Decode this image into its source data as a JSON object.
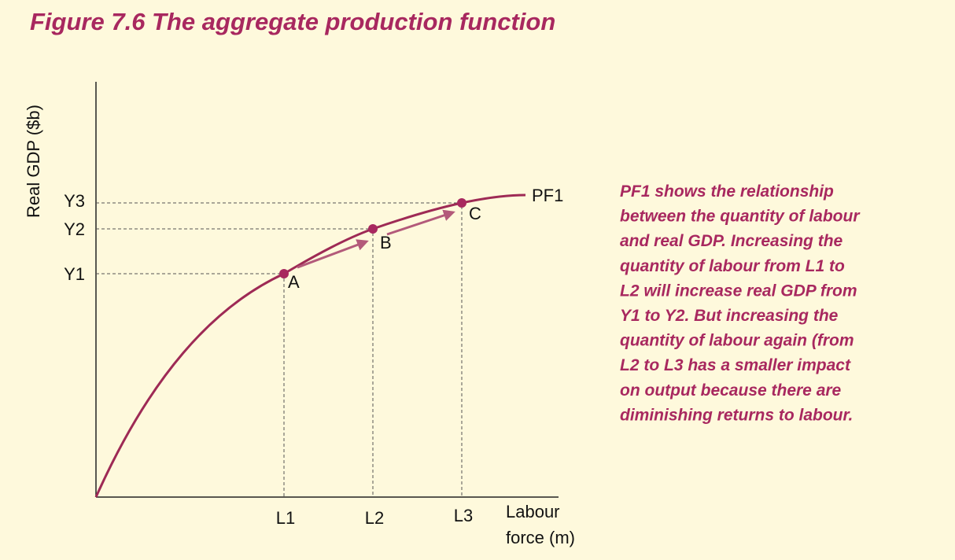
{
  "title": "Figure 7.6  The aggregate production function",
  "y_axis_label": "Real GDP ($b)",
  "x_axis_label": [
    "Labour",
    "force (m)"
  ],
  "y_ticks": [
    "Y1",
    "Y2",
    "Y3"
  ],
  "x_ticks": [
    "L1",
    "L2",
    "L3"
  ],
  "curve_label": "PF1",
  "points": [
    "A",
    "B",
    "C"
  ],
  "note": [
    "PF1 shows the relationship",
    "between the quantity of labour",
    "and real GDP. Increasing the",
    "quantity of labour from L1 to",
    "L2 will increase real GDP from",
    "Y1 to Y2. But increasing the",
    "quantity of labour again (from",
    "L2 to L3 has a smaller impact",
    "on output because there are",
    "diminishing returns to labour."
  ]
}
